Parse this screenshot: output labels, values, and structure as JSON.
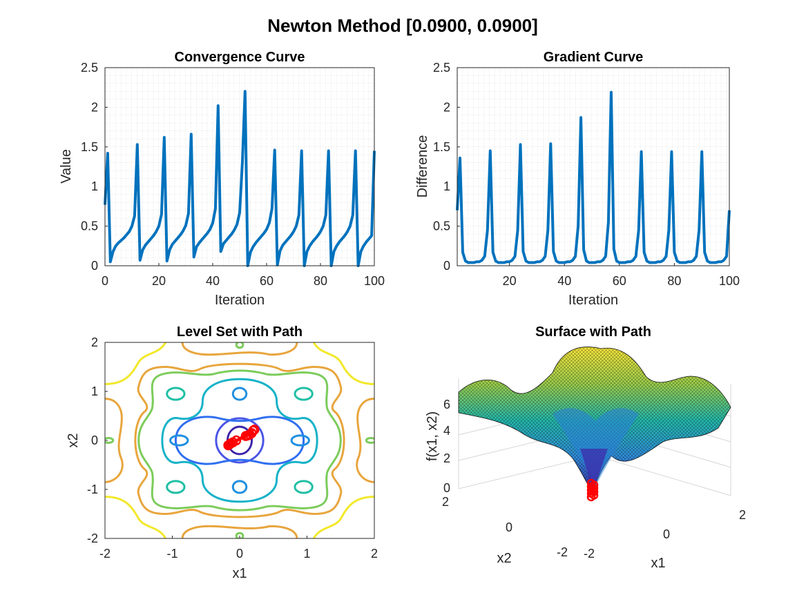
{
  "figure": {
    "title": "Newton Method [0.0900, 0.0900]"
  },
  "chart_data": [
    {
      "type": "line",
      "title": "Convergence Curve",
      "xlabel": "Iteration",
      "ylabel": "Value",
      "xlim": [
        0,
        100
      ],
      "ylim": [
        0,
        2.5
      ],
      "xticks": [
        0,
        20,
        40,
        60,
        80,
        100
      ],
      "yticks": [
        0,
        0.5,
        1,
        1.5,
        2,
        2.5
      ],
      "grid": "minor",
      "series": [
        {
          "color": "#0072BD",
          "x": [
            0,
            1,
            2,
            3,
            4,
            5,
            6,
            7,
            8,
            9,
            10,
            11,
            12,
            13,
            14,
            15,
            16,
            17,
            18,
            19,
            20,
            21,
            22,
            23,
            24,
            25,
            26,
            27,
            28,
            29,
            30,
            31,
            32,
            33,
            34,
            35,
            36,
            37,
            38,
            39,
            40,
            41,
            42,
            43,
            44,
            45,
            46,
            47,
            48,
            49,
            50,
            51,
            52,
            53,
            54,
            55,
            56,
            57,
            58,
            59,
            60,
            61,
            62,
            63,
            64,
            65,
            66,
            67,
            68,
            69,
            70,
            71,
            72,
            73,
            74,
            75,
            76,
            77,
            78,
            79,
            80,
            81,
            82,
            83,
            84,
            85,
            86,
            87,
            88,
            89,
            90,
            91,
            92,
            93,
            94,
            95,
            96,
            97,
            98,
            99,
            100
          ],
          "y": [
            0.77,
            1.42,
            0.05,
            0.18,
            0.25,
            0.29,
            0.32,
            0.35,
            0.39,
            0.43,
            0.5,
            0.63,
            1.53,
            0.07,
            0.2,
            0.26,
            0.3,
            0.34,
            0.38,
            0.43,
            0.5,
            0.65,
            1.62,
            0.06,
            0.2,
            0.27,
            0.31,
            0.35,
            0.39,
            0.44,
            0.51,
            0.66,
            1.66,
            0.11,
            0.24,
            0.29,
            0.33,
            0.37,
            0.41,
            0.46,
            0.54,
            0.72,
            2.02,
            0.18,
            0.28,
            0.32,
            0.36,
            0.4,
            0.45,
            0.52,
            0.67,
            1.3,
            2.2,
            0.0,
            0.17,
            0.24,
            0.29,
            0.33,
            0.37,
            0.41,
            0.46,
            0.54,
            0.72,
            1.46,
            0.01,
            0.19,
            0.26,
            0.3,
            0.34,
            0.38,
            0.43,
            0.5,
            0.64,
            1.45,
            0.0,
            0.18,
            0.25,
            0.3,
            0.34,
            0.38,
            0.43,
            0.5,
            0.64,
            1.45,
            0.0,
            0.18,
            0.25,
            0.3,
            0.34,
            0.38,
            0.43,
            0.5,
            0.64,
            1.45,
            0.0,
            0.18,
            0.25,
            0.3,
            0.34,
            0.38,
            1.45
          ]
        }
      ]
    },
    {
      "type": "line",
      "title": "Gradient Curve",
      "xlabel": "Iteration",
      "ylabel": "Difference",
      "xlim": [
        1,
        100
      ],
      "ylim": [
        0,
        2.5
      ],
      "xticks": [
        20,
        40,
        60,
        80,
        100
      ],
      "yticks": [
        0,
        0.5,
        1,
        1.5,
        2,
        2.5
      ],
      "grid": "minor",
      "series": [
        {
          "color": "#0072BD",
          "x": [
            1,
            2,
            3,
            4,
            5,
            6,
            7,
            8,
            9,
            10,
            11,
            12,
            13,
            14,
            15,
            16,
            17,
            18,
            19,
            20,
            21,
            22,
            23,
            24,
            25,
            26,
            27,
            28,
            29,
            30,
            31,
            32,
            33,
            34,
            35,
            36,
            37,
            38,
            39,
            40,
            41,
            42,
            43,
            44,
            45,
            46,
            47,
            48,
            49,
            50,
            51,
            52,
            53,
            54,
            55,
            56,
            57,
            58,
            59,
            60,
            61,
            62,
            63,
            64,
            65,
            66,
            67,
            68,
            69,
            70,
            71,
            72,
            73,
            74,
            75,
            76,
            77,
            78,
            79,
            80,
            81,
            82,
            83,
            84,
            85,
            86,
            87,
            88,
            89,
            90,
            91,
            92,
            93,
            94,
            95,
            96,
            97,
            98,
            99,
            100
          ],
          "y": [
            0.7,
            1.36,
            0.17,
            0.06,
            0.04,
            0.04,
            0.04,
            0.05,
            0.05,
            0.07,
            0.12,
            0.45,
            1.45,
            0.17,
            0.06,
            0.04,
            0.04,
            0.04,
            0.05,
            0.05,
            0.07,
            0.12,
            0.45,
            1.53,
            0.18,
            0.06,
            0.04,
            0.04,
            0.04,
            0.05,
            0.05,
            0.07,
            0.12,
            0.45,
            1.54,
            0.18,
            0.06,
            0.04,
            0.04,
            0.04,
            0.05,
            0.05,
            0.07,
            0.12,
            0.5,
            1.87,
            0.2,
            0.06,
            0.04,
            0.04,
            0.04,
            0.05,
            0.05,
            0.07,
            0.12,
            0.55,
            2.19,
            0.21,
            0.06,
            0.04,
            0.04,
            0.04,
            0.05,
            0.05,
            0.07,
            0.12,
            0.45,
            1.44,
            0.17,
            0.06,
            0.04,
            0.04,
            0.04,
            0.05,
            0.05,
            0.07,
            0.12,
            0.45,
            1.44,
            0.17,
            0.06,
            0.04,
            0.04,
            0.04,
            0.05,
            0.05,
            0.07,
            0.12,
            0.45,
            1.44,
            0.17,
            0.06,
            0.04,
            0.04,
            0.04,
            0.05,
            0.05,
            0.07,
            0.12,
            0.7
          ]
        }
      ]
    },
    {
      "type": "contour",
      "title": "Level Set with Path",
      "xlabel": "x1",
      "ylabel": "x2",
      "xlim": [
        -2,
        2
      ],
      "ylim": [
        -2,
        2
      ],
      "xticks": [
        -2,
        -1,
        0,
        1,
        2
      ],
      "yticks": [
        -2,
        -1,
        0,
        1,
        2
      ],
      "colormap": [
        "#3e26a8",
        "#2f6ef0",
        "#1aa3d8",
        "#23bca8",
        "#7ccc5b",
        "#e1b83a",
        "#f9f71b"
      ],
      "path": {
        "color": "#ff0000",
        "x": [
          0.09,
          0.2,
          -0.15,
          0.22,
          -0.13,
          0.18,
          -0.1,
          0.15,
          -0.05,
          0.12,
          -0.17
        ],
        "y": [
          0.09,
          0.2,
          -0.08,
          0.22,
          -0.06,
          0.15,
          -0.04,
          0.12,
          0.0,
          0.1,
          -0.1
        ]
      }
    },
    {
      "type": "surface",
      "title": "Surface with Path",
      "xlabel": "x1",
      "ylabel": "x2",
      "zlabel": "f(x1, x2)",
      "xlim": [
        -2,
        2
      ],
      "ylim": [
        -2,
        2
      ],
      "zlim": [
        0,
        7
      ],
      "xticks": [
        -2,
        0,
        2
      ],
      "yticks": [
        -2,
        0,
        2
      ],
      "zticks": [
        0,
        2,
        4,
        6
      ],
      "colormap": "parula",
      "path_color": "#ff0000"
    }
  ]
}
